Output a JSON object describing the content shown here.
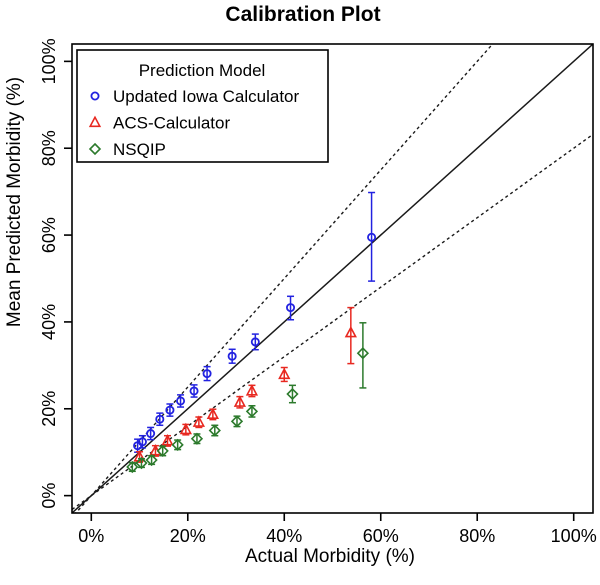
{
  "chart_data": {
    "type": "scatter",
    "title": "Calibration Plot",
    "xlabel": "Actual Morbidity (%)",
    "ylabel": "Mean Predicted Morbidity (%)",
    "xlim": [
      0,
      100
    ],
    "ylim": [
      0,
      100
    ],
    "x_ticks": [
      0,
      20,
      40,
      60,
      80,
      100
    ],
    "y_ticks": [
      0,
      20,
      40,
      60,
      80,
      100
    ],
    "tick_suffix": "%",
    "grid": false,
    "frame_color": "#000000",
    "reference_lines": [
      {
        "name": "identity-line",
        "slope": 1,
        "intercept": 0,
        "style": "solid",
        "color": "#1a1a1a"
      },
      {
        "name": "upper-bound-line",
        "slope": 1.25,
        "intercept": 0,
        "style": "dashed",
        "color": "#1a1a1a"
      },
      {
        "name": "lower-bound-line",
        "slope": 0.8,
        "intercept": 0,
        "style": "dashed",
        "color": "#1a1a1a"
      }
    ],
    "legend": {
      "title": "Prediction Model",
      "position": "top-left"
    },
    "series": [
      {
        "name": "Updated Iowa Calculator",
        "marker": "circle",
        "color": "#2222e0",
        "points": [
          {
            "x": 9.6,
            "y": 11.5,
            "lo": 10.0,
            "hi": 13.0
          },
          {
            "x": 10.6,
            "y": 12.4,
            "lo": 11.0,
            "hi": 13.8
          },
          {
            "x": 12.3,
            "y": 14.3,
            "lo": 12.9,
            "hi": 15.7
          },
          {
            "x": 14.2,
            "y": 17.6,
            "lo": 16.2,
            "hi": 19.0
          },
          {
            "x": 16.3,
            "y": 19.7,
            "lo": 18.3,
            "hi": 21.1
          },
          {
            "x": 18.5,
            "y": 21.8,
            "lo": 20.4,
            "hi": 23.2
          },
          {
            "x": 21.3,
            "y": 24.1,
            "lo": 22.7,
            "hi": 25.5
          },
          {
            "x": 24.0,
            "y": 28.1,
            "lo": 26.5,
            "hi": 29.7
          },
          {
            "x": 29.2,
            "y": 32.1,
            "lo": 30.5,
            "hi": 33.7
          },
          {
            "x": 34.0,
            "y": 35.4,
            "lo": 33.6,
            "hi": 37.2
          },
          {
            "x": 41.3,
            "y": 43.3,
            "lo": 40.5,
            "hi": 45.9
          },
          {
            "x": 58.1,
            "y": 59.5,
            "lo": 49.4,
            "hi": 69.8
          }
        ]
      },
      {
        "name": "ACS-Calculator",
        "marker": "triangle",
        "color": "#e82820",
        "points": [
          {
            "x": 10.0,
            "y": 8.9,
            "lo": 7.7,
            "hi": 10.1
          },
          {
            "x": 13.3,
            "y": 10.3,
            "lo": 9.1,
            "hi": 11.5
          },
          {
            "x": 15.8,
            "y": 12.6,
            "lo": 11.4,
            "hi": 13.8
          },
          {
            "x": 19.6,
            "y": 15.2,
            "lo": 14.0,
            "hi": 16.4
          },
          {
            "x": 22.3,
            "y": 16.9,
            "lo": 15.7,
            "hi": 18.1
          },
          {
            "x": 25.2,
            "y": 18.7,
            "lo": 17.5,
            "hi": 19.9
          },
          {
            "x": 30.8,
            "y": 21.5,
            "lo": 20.2,
            "hi": 22.8
          },
          {
            "x": 33.3,
            "y": 24.1,
            "lo": 22.8,
            "hi": 25.4
          },
          {
            "x": 40.0,
            "y": 27.9,
            "lo": 26.3,
            "hi": 29.5
          },
          {
            "x": 53.8,
            "y": 37.5,
            "lo": 30.4,
            "hi": 43.3
          }
        ]
      },
      {
        "name": "NSQIP",
        "marker": "diamond",
        "color": "#2c7a2c",
        "points": [
          {
            "x": 8.5,
            "y": 6.6,
            "lo": 5.6,
            "hi": 7.6
          },
          {
            "x": 10.4,
            "y": 7.5,
            "lo": 6.5,
            "hi": 8.5
          },
          {
            "x": 12.5,
            "y": 8.2,
            "lo": 7.2,
            "hi": 9.2
          },
          {
            "x": 14.8,
            "y": 10.3,
            "lo": 9.2,
            "hi": 11.4
          },
          {
            "x": 17.9,
            "y": 11.7,
            "lo": 10.6,
            "hi": 12.8
          },
          {
            "x": 21.9,
            "y": 13.1,
            "lo": 12.0,
            "hi": 14.2
          },
          {
            "x": 25.6,
            "y": 15.0,
            "lo": 13.8,
            "hi": 16.2
          },
          {
            "x": 30.2,
            "y": 17.1,
            "lo": 15.9,
            "hi": 18.3
          },
          {
            "x": 33.3,
            "y": 19.4,
            "lo": 18.1,
            "hi": 20.7
          },
          {
            "x": 41.7,
            "y": 23.4,
            "lo": 21.4,
            "hi": 25.4
          },
          {
            "x": 56.3,
            "y": 32.8,
            "lo": 24.8,
            "hi": 39.8
          }
        ]
      }
    ]
  }
}
